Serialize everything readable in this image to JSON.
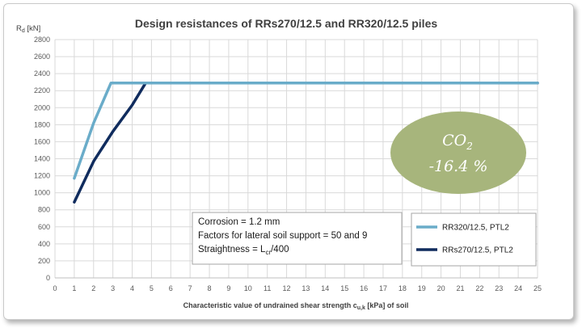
{
  "chart_data": {
    "type": "line",
    "title": "Design resistances of RRs270/12.5 and RR320/12.5 piles",
    "ylabel_main": "R",
    "ylabel_sub": "d",
    "ylabel_unit": " [kN]",
    "xlabel_main": "Characteristic value of undrained shear strength c",
    "xlabel_sub": "u,k",
    "xlabel_unit": " [kPa]  of soil",
    "xlim": [
      0,
      25
    ],
    "ylim": [
      0,
      2800
    ],
    "xticks": [
      "0",
      "1",
      "2",
      "3",
      "4",
      "5",
      "6",
      "7",
      "8",
      "9",
      "10",
      "11",
      "12",
      "13",
      "14",
      "15",
      "16",
      "17",
      "18",
      "19",
      "20",
      "21",
      "22",
      "23",
      "24",
      "25"
    ],
    "yticks": [
      "0",
      "200",
      "400",
      "600",
      "800",
      "1000",
      "1200",
      "1400",
      "1600",
      "1800",
      "2000",
      "2200",
      "2400",
      "2600",
      "2800"
    ],
    "grid": true,
    "series": [
      {
        "name": "RR320/12.5, PTL2",
        "color": "#6aacc9",
        "x": [
          1,
          2,
          2.9,
          25
        ],
        "y": [
          1170,
          1820,
          2290,
          2290
        ]
      },
      {
        "name": "RRs270/12.5, PTL2",
        "color": "#102c5e",
        "x": [
          1,
          2,
          3,
          4,
          4.7,
          25
        ],
        "y": [
          890,
          1370,
          1720,
          2030,
          2290,
          2290
        ]
      }
    ],
    "legend_position": "bottom-right"
  },
  "annotation": {
    "lines": [
      {
        "main": "Corrosion = 1.2 mm",
        "sub": "",
        "tail": ""
      },
      {
        "main": "Factors for lateral soil support = 50 and 9",
        "sub": "",
        "tail": ""
      },
      {
        "main": "Straightness = L",
        "sub": "cr",
        "tail": "/400"
      }
    ]
  },
  "badge": {
    "line1_main": "CO",
    "line1_sub": "2",
    "line2": "-16.4 %",
    "color": "#a7b57c"
  }
}
